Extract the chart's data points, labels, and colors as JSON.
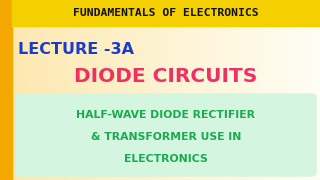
{
  "bg_color": "#fef3d0",
  "bg_color_right": "#fffef8",
  "left_bar_color": "#f5a800",
  "title_bg": "#f5d000",
  "title_text": "FUNDAMENTALS OF ELECTRONICS",
  "title_color": "#111111",
  "lecture_text": "LECTURE -3A",
  "lecture_color": "#1a3cc8",
  "diode_text": "DIODE CIRCUITS",
  "diode_color": "#f03060",
  "sub_text_line1": "HALF-WAVE DIODE RECTIFIER",
  "sub_text_line2": "& TRANSFORMER USE IN",
  "sub_text_line3": "ELECTRONICS",
  "sub_color": "#1aaa50",
  "sub_bg": "#d4f5e0",
  "left_bar_width": 12
}
